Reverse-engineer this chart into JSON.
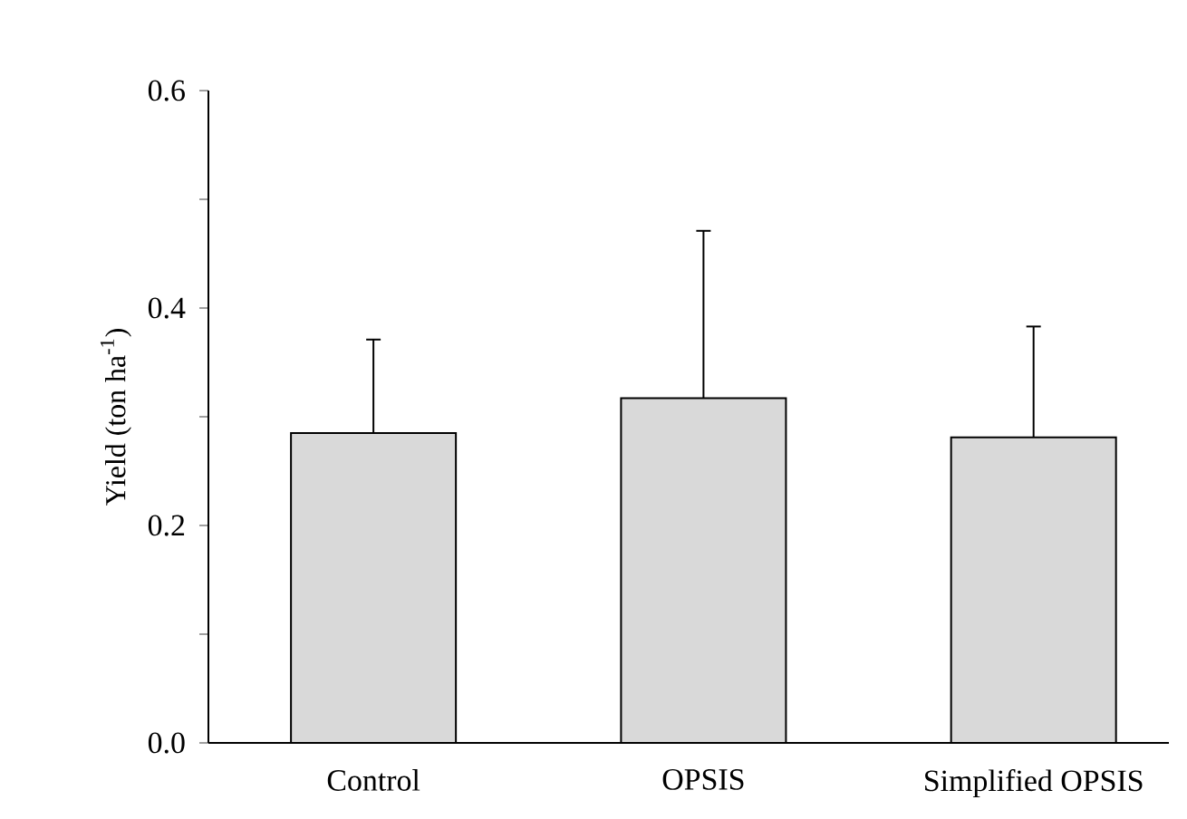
{
  "chart_data": {
    "type": "bar",
    "ylabel": "Yield (ton ha$^{-1}$)",
    "categories": [
      "Control",
      "OPSIS",
      "Simplified OPSIS"
    ],
    "values": [
      0.285,
      0.317,
      0.281
    ],
    "errors": [
      [
        0.285,
        0.371
      ],
      [
        0.317,
        0.471
      ],
      [
        0.281,
        0.383
      ]
    ],
    "color": "#d9d9d9",
    "ylim": [
      0,
      0.6
    ],
    "yticks": [
      {
        "value": 0,
        "label": "0.0"
      },
      {
        "value": 0.1,
        "label": null
      },
      0.2,
      {
        "value": 0.3,
        "label": null
      },
      0.4,
      {
        "value": 0.5,
        "label": null
      },
      0.6
    ],
    "grid": false
  }
}
